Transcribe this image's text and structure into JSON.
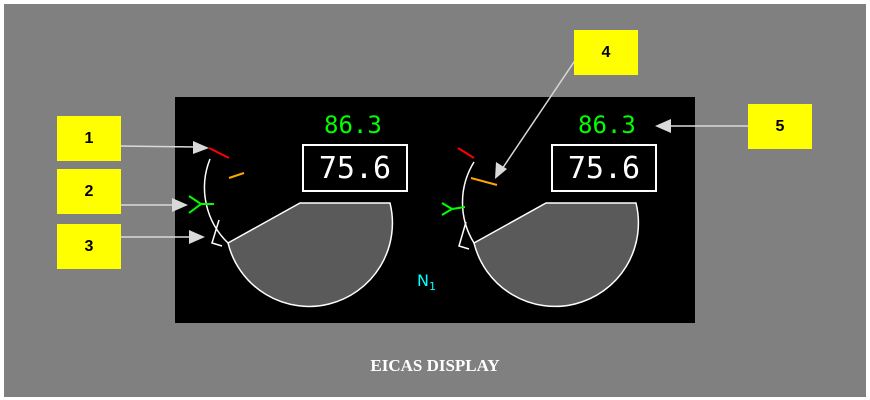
{
  "caption": "EICAS DISPLAY",
  "parameter": {
    "base": "N",
    "sub": "1"
  },
  "engines": [
    {
      "target": "86.3",
      "actual": "75.6"
    },
    {
      "target": "86.3",
      "actual": "75.6"
    }
  ],
  "callouts": [
    "1",
    "2",
    "3",
    "4",
    "5"
  ],
  "colors": {
    "background": "#808080",
    "screen": "#000000",
    "callout": "#ffff00",
    "target": "#00ff00",
    "parameter": "#00ffff",
    "redline": "#ff0000",
    "amber": "#ffa500",
    "fill": "#5a5a5a"
  }
}
